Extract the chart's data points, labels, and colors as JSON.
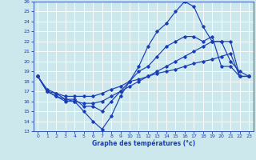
{
  "xlabel": "Graphe des températures (°c)",
  "background_color": "#cce8ec",
  "line_color": "#1a3eb5",
  "grid_color": "#ffffff",
  "ylim": [
    13,
    26
  ],
  "xlim": [
    -0.5,
    23.5
  ],
  "yticks": [
    13,
    14,
    15,
    16,
    17,
    18,
    19,
    20,
    21,
    22,
    23,
    24,
    25,
    26
  ],
  "xticks": [
    0,
    1,
    2,
    3,
    4,
    5,
    6,
    7,
    8,
    9,
    10,
    11,
    12,
    13,
    14,
    15,
    16,
    17,
    18,
    19,
    20,
    21,
    22,
    23
  ],
  "s1_x": [
    0,
    1,
    2,
    3,
    4,
    5,
    6,
    7,
    8,
    9,
    10,
    11,
    12,
    13,
    14,
    15,
    16,
    17,
    18,
    19,
    20,
    21,
    22,
    23
  ],
  "s1_y": [
    18.5,
    17.0,
    16.5,
    16.0,
    16.0,
    15.0,
    14.0,
    13.2,
    14.5,
    16.5,
    18.0,
    19.5,
    21.5,
    23.0,
    23.8,
    25.0,
    26.0,
    25.5,
    23.5,
    22.0,
    22.0,
    20.0,
    19.0,
    18.5
  ],
  "s2_x": [
    0,
    1,
    2,
    3,
    4,
    5,
    6,
    7,
    8,
    9,
    10,
    11,
    12,
    13,
    14,
    15,
    16,
    17,
    18,
    19,
    20,
    21,
    22,
    23
  ],
  "s2_y": [
    18.5,
    17.0,
    16.5,
    16.2,
    16.0,
    15.8,
    15.8,
    16.0,
    16.5,
    17.0,
    17.5,
    18.0,
    18.5,
    19.0,
    19.5,
    20.0,
    20.5,
    21.0,
    21.5,
    22.0,
    22.0,
    22.0,
    18.5,
    18.5
  ],
  "s3_x": [
    0,
    1,
    2,
    3,
    4,
    5,
    6,
    7,
    8,
    9,
    10,
    11,
    12,
    13,
    14,
    15,
    16,
    17,
    18,
    19,
    20,
    21,
    22,
    23
  ],
  "s3_y": [
    18.5,
    17.2,
    16.8,
    16.2,
    16.2,
    15.5,
    15.5,
    15.0,
    16.0,
    17.0,
    18.0,
    19.0,
    19.5,
    20.5,
    21.5,
    22.0,
    22.5,
    22.5,
    22.0,
    22.5,
    19.5,
    19.5,
    18.5,
    18.5
  ],
  "s4_x": [
    0,
    1,
    2,
    3,
    4,
    5,
    6,
    7,
    8,
    9,
    10,
    11,
    12,
    13,
    14,
    15,
    16,
    17,
    18,
    19,
    20,
    21,
    22,
    23
  ],
  "s4_y": [
    18.5,
    17.0,
    16.8,
    16.5,
    16.5,
    16.5,
    16.5,
    16.8,
    17.2,
    17.5,
    18.0,
    18.2,
    18.5,
    18.8,
    19.0,
    19.2,
    19.5,
    19.8,
    20.0,
    20.2,
    20.5,
    20.8,
    18.5,
    18.5
  ],
  "marker": "D",
  "markersize": 1.8,
  "linewidth": 0.85,
  "tick_fontsize": 4.5,
  "xlabel_fontsize": 5.5
}
